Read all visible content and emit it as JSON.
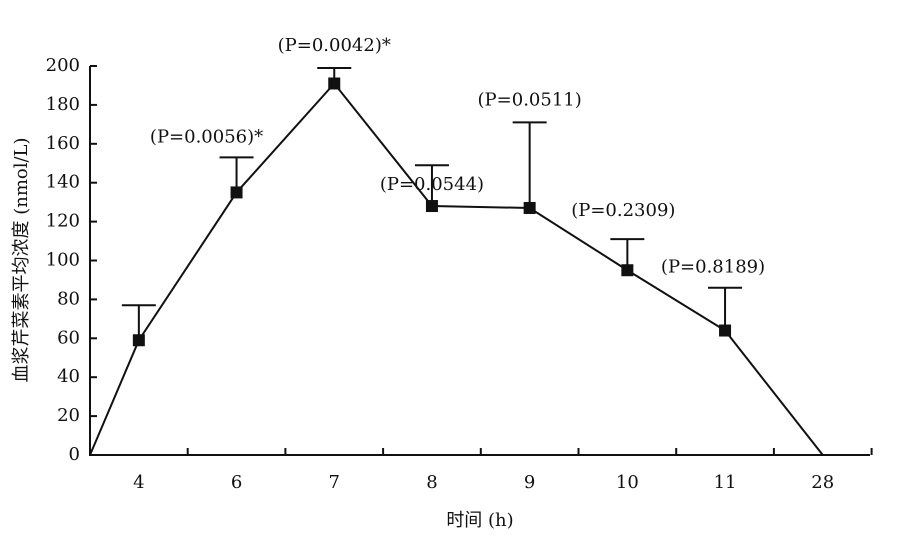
{
  "chart_data": {
    "type": "line",
    "x_label": "时间 (h)",
    "y_label": "血浆芹菜素平均浓度 (nmol/L)",
    "categories": [
      null,
      "4",
      "6",
      "7",
      "8",
      "9",
      "10",
      "11",
      "28"
    ],
    "values": [
      0,
      59,
      135,
      191,
      128,
      127,
      95,
      64,
      0
    ],
    "errors": [
      null,
      18,
      18,
      8,
      21,
      44,
      16,
      22,
      null
    ],
    "p_labels": [
      null,
      null,
      "(P=0.0056)*",
      "(P=0.0042)*",
      "(P=0.0544)",
      "(P=0.0511)",
      "(P=0.2309)",
      "(P=0.8189)",
      null
    ],
    "color": "#111111",
    "ylim": [
      0,
      200
    ],
    "yticks": [
      0,
      20,
      40,
      60,
      80,
      100,
      120,
      140,
      160,
      180,
      200
    ],
    "grid": false
  }
}
